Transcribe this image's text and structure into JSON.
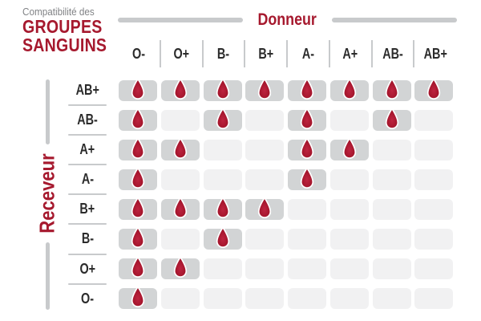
{
  "title": {
    "subtitle": "Compatibilité des",
    "line1": "GROUPES",
    "line2": "SANGUINS"
  },
  "axes": {
    "donor_label": "Donneur",
    "receiver_label": "Receveur"
  },
  "chart_data": {
    "type": "table",
    "title": "Compatibilité des GROUPES SANGUINS",
    "columns_axis_label": "Donneur",
    "rows_axis_label": "Receveur",
    "donors": [
      "O-",
      "O+",
      "B-",
      "B+",
      "A-",
      "A+",
      "AB-",
      "AB+"
    ],
    "receivers": [
      "AB+",
      "AB-",
      "A+",
      "A-",
      "B+",
      "B-",
      "O+",
      "O-"
    ],
    "compatible_marker": "blood-drop-icon",
    "legend": "1 = compatible (blood drop shown), 0 = incompatible (empty cell)",
    "matrix": [
      [
        1,
        1,
        1,
        1,
        1,
        1,
        1,
        1
      ],
      [
        1,
        0,
        1,
        0,
        1,
        0,
        1,
        0
      ],
      [
        1,
        1,
        0,
        0,
        1,
        1,
        0,
        0
      ],
      [
        1,
        0,
        0,
        0,
        1,
        0,
        0,
        0
      ],
      [
        1,
        1,
        1,
        1,
        0,
        0,
        0,
        0
      ],
      [
        1,
        0,
        1,
        0,
        0,
        0,
        0,
        0
      ],
      [
        1,
        1,
        0,
        0,
        0,
        0,
        0,
        0
      ],
      [
        1,
        0,
        0,
        0,
        0,
        0,
        0,
        0
      ]
    ]
  },
  "colors": {
    "accent_red": "#A6192E",
    "drop_red_center": "#BE2440",
    "drop_red_edge": "#9C1126",
    "subtitle_gray": "#808285",
    "header_text": "#2B2B2B",
    "cell_compatible": "#D2D4D5",
    "cell_empty": "#F1F1F2",
    "divider": "#C8CACC",
    "bg": "#FFFFFF"
  }
}
